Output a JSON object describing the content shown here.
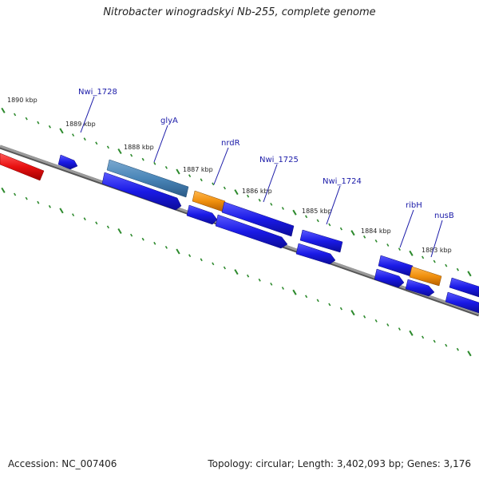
{
  "title": "Nitrobacter winogradskyi Nb-255, complete genome",
  "footer": {
    "accession": "Accession: NC_007406",
    "summary": "Topology: circular; Length: 3,402,093 bp; Genes: 3,176"
  },
  "colors": {
    "backbone": "#8a8a8a",
    "tick": "#2d8a2d",
    "gene_default": "#1a1ae6",
    "gene_highlight": "#4a86b8",
    "gene_orange": "#f0900e",
    "gene_red": "#e81010",
    "label": "#1a1aa8"
  },
  "ticks": [
    {
      "label": "1890 kbp"
    },
    {
      "label": "1889 kbp"
    },
    {
      "label": "1888 kbp"
    },
    {
      "label": "1887 kbp"
    },
    {
      "label": "1886 kbp"
    },
    {
      "label": "1885 kbp"
    },
    {
      "label": "1884 kbp"
    },
    {
      "label": "1883 kbp"
    }
  ],
  "gene_labels": [
    {
      "text": "Nwi_1728"
    },
    {
      "text": "glyA"
    },
    {
      "text": "nrdR"
    },
    {
      "text": "Nwi_1725"
    },
    {
      "text": "Nwi_1724"
    },
    {
      "text": "ribH"
    },
    {
      "text": "nusB"
    }
  ]
}
